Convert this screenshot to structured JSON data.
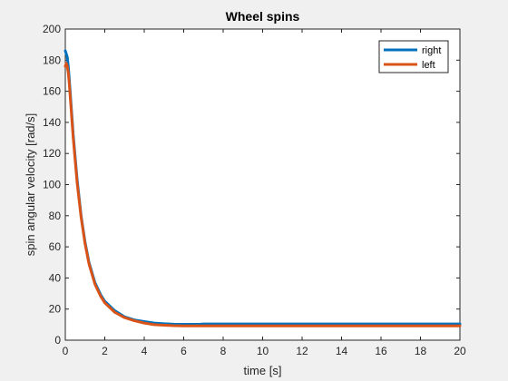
{
  "chart_data": {
    "type": "line",
    "title": "Wheel spins",
    "xlabel": "time [s]",
    "ylabel": "spin angular velocity [rad/s]",
    "xlim": [
      0,
      20
    ],
    "ylim": [
      0,
      200
    ],
    "xticks": [
      0,
      2,
      4,
      6,
      8,
      10,
      12,
      14,
      16,
      18,
      20
    ],
    "yticks": [
      0,
      20,
      40,
      60,
      80,
      100,
      120,
      140,
      160,
      180,
      200
    ],
    "grid": false,
    "legend_position": "top-right",
    "series": [
      {
        "name": "right",
        "color": "#0072BD",
        "x": [
          0,
          0.05,
          0.1,
          0.15,
          0.2,
          0.4,
          0.6,
          0.8,
          1.0,
          1.2,
          1.5,
          1.8,
          2.0,
          2.5,
          3.0,
          3.5,
          4.0,
          4.5,
          5.0,
          5.5,
          6.0,
          6.8,
          7.0,
          8.0,
          10.0,
          12.0,
          14.0,
          16.0,
          18.0,
          20.0
        ],
        "y": [
          186,
          184,
          182,
          176,
          168,
          132,
          103,
          80,
          63,
          50,
          37,
          29,
          25,
          19,
          15,
          13,
          12,
          11,
          10.6,
          10.3,
          10.2,
          10.2,
          10.4,
          10.4,
          10.4,
          10.4,
          10.4,
          10.4,
          10.4,
          10.4
        ]
      },
      {
        "name": "left",
        "color": "#D95319",
        "x": [
          0,
          0.05,
          0.1,
          0.15,
          0.2,
          0.4,
          0.6,
          0.8,
          1.0,
          1.2,
          1.5,
          1.8,
          2.0,
          2.5,
          3.0,
          3.5,
          4.0,
          4.5,
          5.0,
          5.5,
          6.0,
          7.0,
          8.0,
          10.0,
          12.0,
          14.0,
          16.0,
          18.0,
          20.0
        ],
        "y": [
          176,
          178,
          176,
          172,
          165,
          130,
          101,
          79,
          62,
          49,
          36,
          28,
          24,
          18,
          14.5,
          12.5,
          11,
          10,
          9.6,
          9.3,
          9.2,
          9.2,
          9.2,
          9.2,
          9.2,
          9.2,
          9.2,
          9.2,
          9.2
        ]
      }
    ]
  }
}
